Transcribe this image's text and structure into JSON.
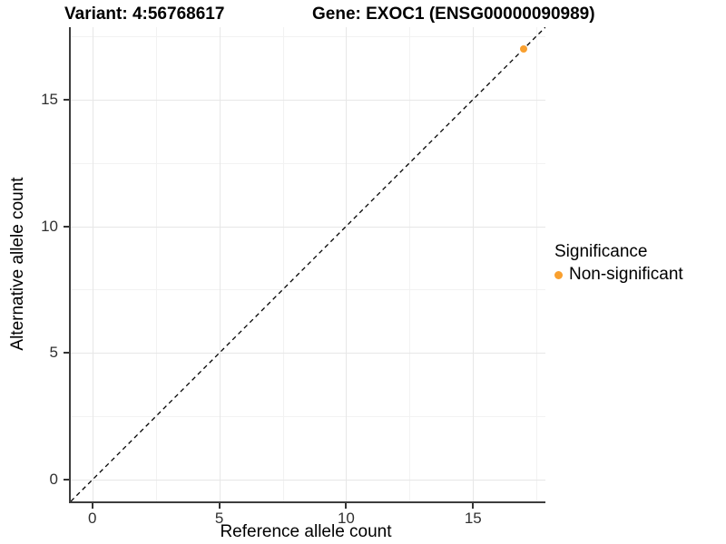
{
  "titles": {
    "variant": "Variant: 4:56768617",
    "gene": "Gene: EXOC1 (ENSG00000090989)"
  },
  "legend": {
    "title": "Significance",
    "items": [
      {
        "label": "Non-significant",
        "color": "#F9A02F"
      }
    ]
  },
  "chart_data": {
    "type": "scatter",
    "title": "Variant: 4:56768617   Gene: EXOC1 (ENSG00000090989)",
    "xlabel": "Reference allele count",
    "ylabel": "Alternative allele count",
    "xlim": [
      -0.85,
      17.85
    ],
    "ylim": [
      -0.85,
      17.85
    ],
    "x_ticks": [
      0,
      5,
      10,
      15
    ],
    "y_ticks": [
      0,
      5,
      10,
      15
    ],
    "x_minor_ticks": [
      2.5,
      7.5,
      12.5,
      17.5
    ],
    "y_minor_ticks": [
      2.5,
      7.5,
      12.5,
      17.5
    ],
    "grid": true,
    "legend_position": "right",
    "series": [
      {
        "name": "Non-significant",
        "color": "#F9A02F",
        "points": [
          {
            "x": 17,
            "y": 17
          }
        ]
      }
    ],
    "reference_line": {
      "slope": 1,
      "intercept": 0,
      "style": "dashed",
      "color": "#000000"
    }
  },
  "colors": {
    "grid_major": "#e7e7e7",
    "grid_minor": "#f2f2f2",
    "axis_line": "#3d3d3d",
    "tick_mark": "#333333",
    "tick_text": "#303030"
  }
}
